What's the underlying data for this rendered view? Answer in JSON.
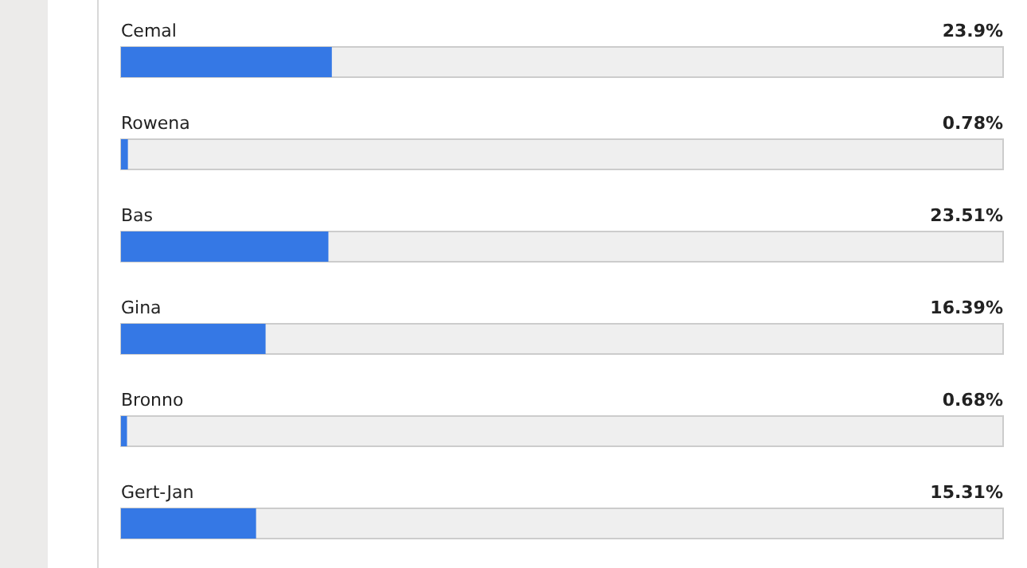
{
  "chart_data": {
    "type": "bar",
    "orientation": "horizontal",
    "categories": [
      "Cemal",
      "Rowena",
      "Bas",
      "Gina",
      "Bronno",
      "Gert-Jan"
    ],
    "values": [
      23.9,
      0.78,
      23.51,
      16.39,
      0.68,
      15.31
    ],
    "value_labels": [
      "23.9%",
      "0.78%",
      "23.51%",
      "16.39%",
      "0.68%",
      "15.31%"
    ],
    "color": "#3578e5",
    "xlim": [
      0,
      100
    ]
  }
}
